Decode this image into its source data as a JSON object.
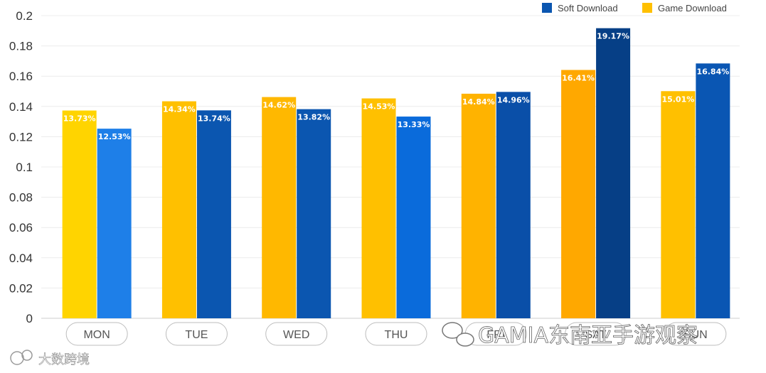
{
  "chart_data": {
    "type": "bar",
    "categories": [
      "MON",
      "TUE",
      "WED",
      "THU",
      "FRI",
      "SAT",
      "SUN"
    ],
    "series": [
      {
        "name": "Game Download",
        "values": [
          0.1373,
          0.1434,
          0.1462,
          0.1453,
          0.1484,
          0.1641,
          0.1501
        ],
        "labels": [
          "13.73%",
          "14.34%",
          "14.62%",
          "14.53%",
          "14.84%",
          "16.41%",
          "15.01%"
        ],
        "color": "#FFC000"
      },
      {
        "name": "Soft Download",
        "values": [
          0.1253,
          0.1374,
          0.1382,
          0.1333,
          0.1496,
          0.1917,
          0.1684
        ],
        "labels": [
          "12.53%",
          "13.74%",
          "13.82%",
          "13.33%",
          "14.96%",
          "19.17%",
          "16.84%"
        ],
        "color": "#0B56B0"
      }
    ],
    "ylim": [
      0,
      0.2
    ],
    "yticks": [
      "0",
      "0.02",
      "0.04",
      "0.06",
      "0.08",
      "0.1",
      "0.12",
      "0.14",
      "0.16",
      "0.18",
      "0.2"
    ],
    "grid": true,
    "legend_position": "top-right",
    "title": "",
    "xlabel": "",
    "ylabel": ""
  },
  "watermarks": {
    "bottom_left": "大数跨境",
    "bottom_right": "GAMIA东南亚手游观察"
  }
}
